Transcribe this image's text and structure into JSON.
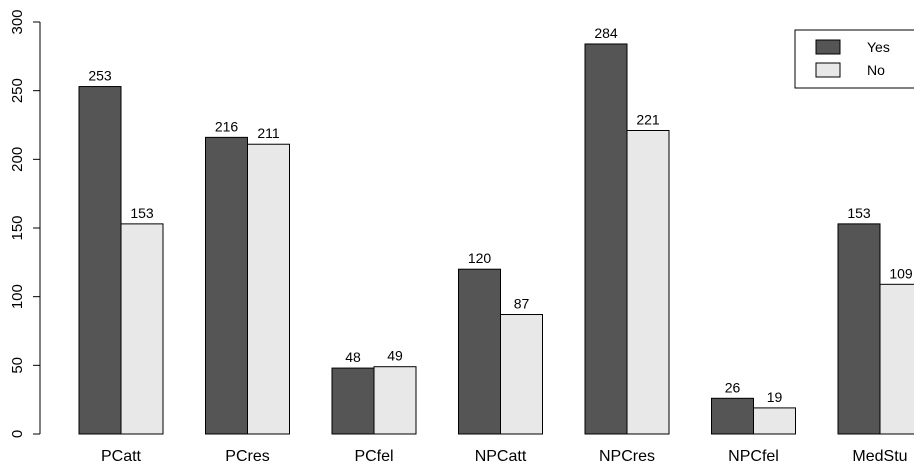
{
  "chart_data": {
    "type": "bar",
    "grouped": true,
    "categories": [
      "PCatt",
      "PCres",
      "PCfel",
      "NPCatt",
      "NPCres",
      "NPCfel",
      "MedStu"
    ],
    "series": [
      {
        "name": "Yes",
        "color": "#555555",
        "values": [
          253,
          216,
          48,
          120,
          284,
          26,
          153
        ]
      },
      {
        "name": "No",
        "color": "#e8e8e8",
        "values": [
          153,
          211,
          49,
          87,
          221,
          19,
          109
        ]
      }
    ],
    "ylim": [
      0,
      300
    ],
    "yticks": [
      "0",
      "50",
      "100",
      "150",
      "200",
      "250",
      "300"
    ],
    "grid": false,
    "legend_position": "top-right",
    "title": "",
    "xlabel": "",
    "ylabel": ""
  }
}
